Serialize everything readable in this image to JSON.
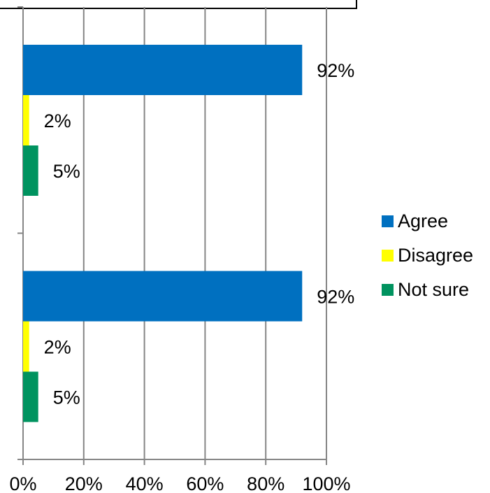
{
  "chart_data": {
    "type": "bar",
    "orientation": "horizontal",
    "categories": [
      "",
      ""
    ],
    "series": [
      {
        "name": "Agree",
        "values": [
          92,
          92
        ],
        "labels": [
          "92%",
          "92%"
        ],
        "color": "#0070c0"
      },
      {
        "name": "Disagree",
        "values": [
          2,
          2
        ],
        "labels": [
          "2%",
          "2%"
        ],
        "color": "#ffff00"
      },
      {
        "name": "Not sure",
        "values": [
          5,
          5
        ],
        "labels": [
          "5%",
          "5%"
        ],
        "color": "#00935f"
      }
    ],
    "xlim": [
      0,
      100
    ],
    "xticks": [
      "0%",
      "20%",
      "40%",
      "60%",
      "80%",
      "100%"
    ],
    "grid": true,
    "legend_position": "right"
  }
}
